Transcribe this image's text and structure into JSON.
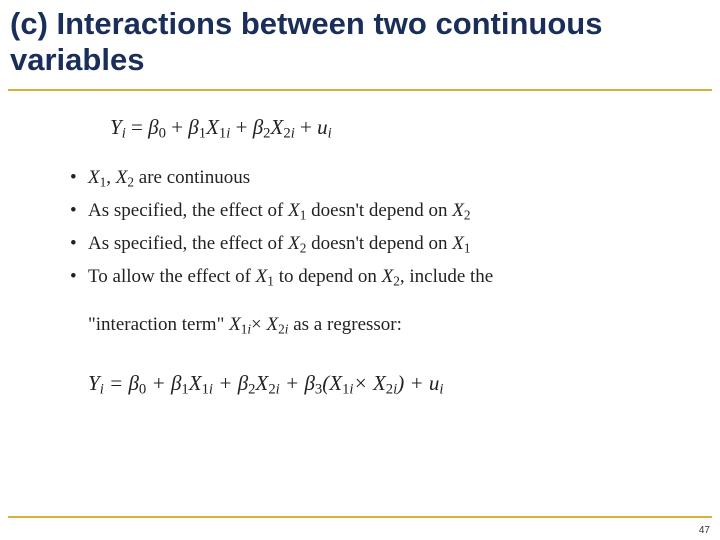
{
  "colors": {
    "accent_line": "#d6b13a",
    "title_color": "#1a2e5a",
    "text_color": "#222222",
    "background": "#ffffff"
  },
  "typography": {
    "title_family": "Arial",
    "title_weight": "bold",
    "title_size_pt": 24,
    "body_family": "Times New Roman",
    "body_size_pt": 15,
    "equation_size_pt": 16
  },
  "title": "(c) Interactions between two continuous variables",
  "equation_top": {
    "lhs": "Y",
    "lhs_sub": "i",
    "terms": [
      {
        "coef": "β",
        "coef_sub": "0"
      },
      {
        "op": "+",
        "coef": "β",
        "coef_sub": "1",
        "var": "X",
        "var_sub": "1",
        "var_sub2": "i"
      },
      {
        "op": "+",
        "coef": "β",
        "coef_sub": "2",
        "var": "X",
        "var_sub": "2",
        "var_sub2": "i"
      },
      {
        "op": "+",
        "coef": "u",
        "coef_sub": "i"
      }
    ]
  },
  "bullets": [
    {
      "pre": "",
      "x1": "X",
      "x1s": "1",
      "mid": ", ",
      "x2": "X",
      "x2s": "2",
      "post": " are continuous"
    },
    {
      "pre": "As specified, the effect of ",
      "x1": "X",
      "x1s": "1",
      "mid": " doesn't depend on ",
      "x2": "X",
      "x2s": "2",
      "post": ""
    },
    {
      "pre": "As specified, the effect of ",
      "x1": "X",
      "x1s": "2",
      "mid": " doesn't depend on ",
      "x2": "X",
      "x2s": "1",
      "post": ""
    },
    {
      "pre": "To allow the effect of ",
      "x1": "X",
      "x1s": "1",
      "mid": " to depend on ",
      "x2": "X",
      "x2s": "2",
      "post": ", include the"
    }
  ],
  "subline": {
    "pre": "\"interaction term\" ",
    "x1": "X",
    "x1s1": "1",
    "x1s2": "i",
    "times": "×",
    "x2": "X",
    "x2s1": "2",
    "x2s2": "i",
    "post": " as a regressor:"
  },
  "equation_bottom": {
    "text_parts": {
      "Y": "Y",
      "i": "i",
      "eq": " = ",
      "b": "β",
      "s0": "0",
      "p": " + ",
      "s1": "1",
      "X": "X",
      "s2": "2",
      "s3": "3",
      "lp": "(",
      "rp": ")",
      "x": "× ",
      "u": "u"
    }
  },
  "page_number": "47"
}
